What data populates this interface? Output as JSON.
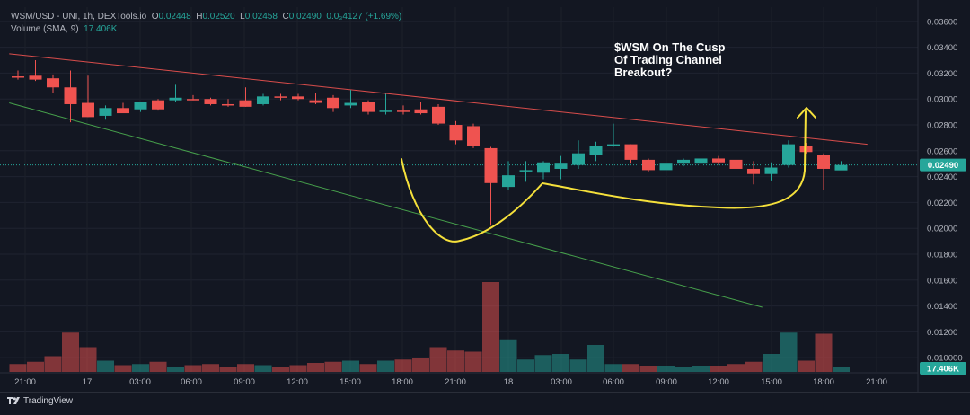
{
  "legend": {
    "symbol": "WSM/USD - UNI, 1h, DEXTools.io",
    "o_label": "O",
    "o": "0.02448",
    "h_label": "H",
    "h": "0.02520",
    "l_label": "L",
    "l": "0.02458",
    "c_label": "C",
    "c": "0.02490",
    "change": "0.0₃4127 (+1.69%)",
    "volume_label": "Volume (SMA, 9)",
    "volume_value": "17.406K"
  },
  "brand": {
    "name": "TradingView"
  },
  "colors": {
    "up": "#26a69a",
    "down": "#ef5350",
    "background": "#131722",
    "resistance": "#ef5350",
    "support": "#4caf50",
    "annotation": "#f5e03b"
  },
  "chart_data": {
    "type": "candlestick",
    "title": "$WSM On The Cusp Of Trading Channel Breakout?",
    "title_lines": [
      "$WSM On The Cusp",
      "Of Trading Channel",
      "Breakout?"
    ],
    "price_ticks": [
      "0.03600",
      "0.03400",
      "0.03200",
      "0.03000",
      "0.02800",
      "0.02600",
      "0.02400",
      "0.02200",
      "0.02000",
      "0.01800",
      "0.01600",
      "0.01400",
      "0.01200",
      "0.010000"
    ],
    "ylim": [
      0.0089,
      0.0371
    ],
    "x_ticks": [
      "21:00",
      "17",
      "03:00",
      "06:00",
      "09:00",
      "12:00",
      "15:00",
      "18:00",
      "21:00",
      "18",
      "03:00",
      "06:00",
      "09:00",
      "12:00",
      "15:00",
      "18:00",
      "21:00"
    ],
    "last_price_label": "0.02490",
    "last_volume_label": "17.406K",
    "candles": [
      {
        "o": 0.03175,
        "h": 0.0322,
        "l": 0.0315,
        "c": 0.03165,
        "v": 0.35
      },
      {
        "o": 0.0318,
        "h": 0.033,
        "l": 0.0314,
        "c": 0.0315,
        "v": 0.45
      },
      {
        "o": 0.0316,
        "h": 0.0319,
        "l": 0.0305,
        "c": 0.0309,
        "v": 0.7
      },
      {
        "o": 0.0309,
        "h": 0.0322,
        "l": 0.0282,
        "c": 0.0296,
        "v": 1.75
      },
      {
        "o": 0.0297,
        "h": 0.0318,
        "l": 0.0286,
        "c": 0.0286,
        "v": 1.1
      },
      {
        "o": 0.0287,
        "h": 0.0295,
        "l": 0.0284,
        "c": 0.0293,
        "v": 0.5
      },
      {
        "o": 0.0293,
        "h": 0.0297,
        "l": 0.029,
        "c": 0.0289,
        "v": 0.3
      },
      {
        "o": 0.0292,
        "h": 0.0296,
        "l": 0.029,
        "c": 0.0298,
        "v": 0.35
      },
      {
        "o": 0.0299,
        "h": 0.03,
        "l": 0.0291,
        "c": 0.0292,
        "v": 0.45
      },
      {
        "o": 0.0299,
        "h": 0.0311,
        "l": 0.0298,
        "c": 0.0301,
        "v": 0.2
      },
      {
        "o": 0.03,
        "h": 0.0303,
        "l": 0.0299,
        "c": 0.0299,
        "v": 0.3
      },
      {
        "o": 0.03,
        "h": 0.0301,
        "l": 0.0295,
        "c": 0.0296,
        "v": 0.35
      },
      {
        "o": 0.0296,
        "h": 0.03,
        "l": 0.0294,
        "c": 0.0295,
        "v": 0.2
      },
      {
        "o": 0.0299,
        "h": 0.0309,
        "l": 0.0294,
        "c": 0.0294,
        "v": 0.35
      },
      {
        "o": 0.0296,
        "h": 0.0304,
        "l": 0.0295,
        "c": 0.0302,
        "v": 0.3
      },
      {
        "o": 0.0302,
        "h": 0.0304,
        "l": 0.0299,
        "c": 0.0301,
        "v": 0.2
      },
      {
        "o": 0.0302,
        "h": 0.0304,
        "l": 0.0299,
        "c": 0.03,
        "v": 0.3
      },
      {
        "o": 0.0299,
        "h": 0.0305,
        "l": 0.0296,
        "c": 0.0297,
        "v": 0.4
      },
      {
        "o": 0.0301,
        "h": 0.0303,
        "l": 0.029,
        "c": 0.0293,
        "v": 0.45
      },
      {
        "o": 0.0295,
        "h": 0.0307,
        "l": 0.0293,
        "c": 0.0297,
        "v": 0.5
      },
      {
        "o": 0.0298,
        "h": 0.0299,
        "l": 0.0288,
        "c": 0.029,
        "v": 0.35
      },
      {
        "o": 0.0291,
        "h": 0.0304,
        "l": 0.0288,
        "c": 0.0291,
        "v": 0.5
      },
      {
        "o": 0.0291,
        "h": 0.0295,
        "l": 0.0288,
        "c": 0.029,
        "v": 0.55
      },
      {
        "o": 0.0292,
        "h": 0.0298,
        "l": 0.0288,
        "c": 0.0289,
        "v": 0.6
      },
      {
        "o": 0.0294,
        "h": 0.0296,
        "l": 0.028,
        "c": 0.0281,
        "v": 1.1
      },
      {
        "o": 0.028,
        "h": 0.0283,
        "l": 0.0265,
        "c": 0.0268,
        "v": 0.95
      },
      {
        "o": 0.0279,
        "h": 0.0281,
        "l": 0.0262,
        "c": 0.0264,
        "v": 0.9
      },
      {
        "o": 0.0262,
        "h": 0.0263,
        "l": 0.0202,
        "c": 0.0235,
        "v": 4.0
      },
      {
        "o": 0.0232,
        "h": 0.0252,
        "l": 0.023,
        "c": 0.0241,
        "v": 1.45
      },
      {
        "o": 0.0244,
        "h": 0.0252,
        "l": 0.0236,
        "c": 0.0245,
        "v": 0.55
      },
      {
        "o": 0.0243,
        "h": 0.0252,
        "l": 0.0238,
        "c": 0.0251,
        "v": 0.75
      },
      {
        "o": 0.0246,
        "h": 0.0256,
        "l": 0.0238,
        "c": 0.025,
        "v": 0.8
      },
      {
        "o": 0.0249,
        "h": 0.0268,
        "l": 0.0246,
        "c": 0.0258,
        "v": 0.55
      },
      {
        "o": 0.0257,
        "h": 0.0267,
        "l": 0.0252,
        "c": 0.0264,
        "v": 1.2
      },
      {
        "o": 0.0264,
        "h": 0.0281,
        "l": 0.0263,
        "c": 0.0265,
        "v": 0.35
      },
      {
        "o": 0.0265,
        "h": 0.0265,
        "l": 0.025,
        "c": 0.0253,
        "v": 0.35
      },
      {
        "o": 0.0253,
        "h": 0.0254,
        "l": 0.0244,
        "c": 0.0245,
        "v": 0.25
      },
      {
        "o": 0.0245,
        "h": 0.0253,
        "l": 0.0244,
        "c": 0.025,
        "v": 0.25
      },
      {
        "o": 0.025,
        "h": 0.0254,
        "l": 0.0248,
        "c": 0.0253,
        "v": 0.2
      },
      {
        "o": 0.025,
        "h": 0.0254,
        "l": 0.0249,
        "c": 0.0254,
        "v": 0.25
      },
      {
        "o": 0.0254,
        "h": 0.0256,
        "l": 0.0249,
        "c": 0.0251,
        "v": 0.25
      },
      {
        "o": 0.0253,
        "h": 0.0254,
        "l": 0.0244,
        "c": 0.0246,
        "v": 0.35
      },
      {
        "o": 0.0246,
        "h": 0.0252,
        "l": 0.0234,
        "c": 0.0242,
        "v": 0.45
      },
      {
        "o": 0.0242,
        "h": 0.0251,
        "l": 0.0237,
        "c": 0.0247,
        "v": 0.8
      },
      {
        "o": 0.0249,
        "h": 0.0268,
        "l": 0.0247,
        "c": 0.0265,
        "v": 1.75
      },
      {
        "o": 0.0264,
        "h": 0.0266,
        "l": 0.0258,
        "c": 0.0259,
        "v": 0.5
      },
      {
        "o": 0.0257,
        "h": 0.0258,
        "l": 0.023,
        "c": 0.0246,
        "v": 1.7
      },
      {
        "o": 0.02448,
        "h": 0.0252,
        "l": 0.02458,
        "c": 0.0249,
        "v": 0.2
      }
    ],
    "trendlines": [
      {
        "name": "resistance",
        "color": "#ef5350",
        "from": [
          -0.5,
          0.0335
        ],
        "to": [
          48.5,
          0.0265
        ]
      },
      {
        "name": "support",
        "color": "#4caf50",
        "from": [
          -0.5,
          0.0297
        ],
        "to": [
          42.5,
          0.0139
        ]
      }
    ],
    "annotation": {
      "type": "cup-and-handle-arrow",
      "color": "#f5e03b"
    }
  }
}
